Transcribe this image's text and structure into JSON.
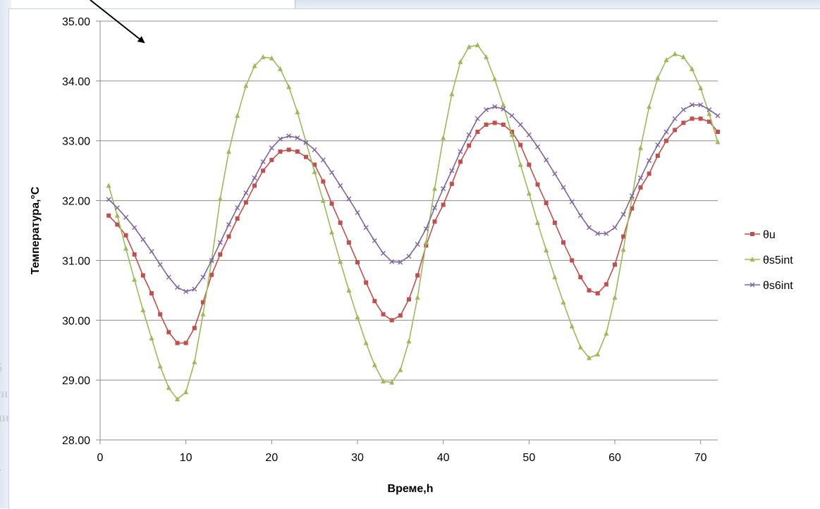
{
  "background": {
    "fragments": [
      "б",
      "ги",
      "ли",
      "."
    ]
  },
  "chart_data": {
    "type": "line",
    "title": "",
    "xlabel": "Време,h",
    "ylabel": "Температура,°C",
    "xlim": [
      0,
      72
    ],
    "ylim": [
      28,
      35
    ],
    "x_ticks": [
      "0",
      "10",
      "20",
      "30",
      "40",
      "50",
      "60",
      "70"
    ],
    "y_ticks": [
      "28.00",
      "29.00",
      "30.00",
      "31.00",
      "32.00",
      "33.00",
      "34.00",
      "35.00"
    ],
    "grid": "horizontal",
    "legend_position": "right",
    "series": [
      {
        "name": "θu",
        "color": "#c0504d",
        "marker": "square",
        "x": [
          1,
          2,
          3,
          4,
          5,
          6,
          7,
          8,
          9,
          10,
          11,
          12,
          13,
          14,
          15,
          16,
          17,
          18,
          19,
          20,
          21,
          22,
          23,
          24,
          25,
          26,
          27,
          28,
          29,
          30,
          31,
          32,
          33,
          34,
          35,
          36,
          37,
          38,
          39,
          40,
          41,
          42,
          43,
          44,
          45,
          46,
          47,
          48,
          49,
          50,
          51,
          52,
          53,
          54,
          55,
          56,
          57,
          58,
          59,
          60,
          61,
          62,
          63,
          64,
          65,
          66,
          67,
          68,
          69,
          70,
          71,
          72
        ],
        "values": [
          31.75,
          31.6,
          31.42,
          31.1,
          30.75,
          30.45,
          30.1,
          29.8,
          29.62,
          29.62,
          29.87,
          30.3,
          30.76,
          31.1,
          31.4,
          31.7,
          31.97,
          32.25,
          32.5,
          32.68,
          32.82,
          32.85,
          32.82,
          32.73,
          32.6,
          32.32,
          31.95,
          31.63,
          31.3,
          30.97,
          30.63,
          30.32,
          30.1,
          30.0,
          30.08,
          30.35,
          30.75,
          31.25,
          31.65,
          31.93,
          32.28,
          32.65,
          32.92,
          33.15,
          33.27,
          33.3,
          33.27,
          33.15,
          32.93,
          32.6,
          32.27,
          31.96,
          31.63,
          31.3,
          31.0,
          30.72,
          30.5,
          30.45,
          30.6,
          30.93,
          31.4,
          31.87,
          32.22,
          32.45,
          32.75,
          33.0,
          33.18,
          33.3,
          33.37,
          33.37,
          33.32,
          33.15
        ]
      },
      {
        "name": "θs5int",
        "color": "#9bbb59",
        "marker": "triangle",
        "x": [
          1,
          2,
          3,
          4,
          5,
          6,
          7,
          8,
          9,
          10,
          11,
          12,
          13,
          14,
          15,
          16,
          17,
          18,
          19,
          20,
          21,
          22,
          23,
          24,
          25,
          26,
          27,
          28,
          29,
          30,
          31,
          32,
          33,
          34,
          35,
          36,
          37,
          38,
          39,
          40,
          41,
          42,
          43,
          44,
          45,
          46,
          47,
          48,
          49,
          50,
          51,
          52,
          53,
          54,
          55,
          56,
          57,
          58,
          59,
          60,
          61,
          62,
          63,
          64,
          65,
          66,
          67,
          68,
          69,
          70,
          71,
          72
        ],
        "values": [
          32.25,
          31.75,
          31.2,
          30.68,
          30.17,
          29.7,
          29.23,
          28.87,
          28.68,
          28.8,
          29.3,
          30.1,
          31.0,
          32.03,
          32.82,
          33.42,
          33.92,
          34.25,
          34.4,
          34.38,
          34.2,
          33.9,
          33.48,
          32.98,
          32.48,
          32.0,
          31.47,
          30.98,
          30.5,
          30.05,
          29.62,
          29.25,
          28.98,
          28.96,
          29.17,
          29.65,
          30.38,
          31.3,
          32.2,
          33.05,
          33.78,
          34.32,
          34.57,
          34.6,
          34.4,
          34.03,
          33.6,
          33.1,
          32.6,
          32.12,
          31.63,
          31.17,
          30.72,
          30.3,
          29.9,
          29.55,
          29.37,
          29.43,
          29.78,
          30.38,
          31.18,
          32.05,
          32.88,
          33.57,
          34.05,
          34.35,
          34.45,
          34.4,
          34.2,
          33.88,
          33.45,
          32.98
        ]
      },
      {
        "name": "θs6int",
        "color": "#8064a2",
        "marker": "x",
        "x": [
          1,
          2,
          3,
          4,
          5,
          6,
          7,
          8,
          9,
          10,
          11,
          12,
          13,
          14,
          15,
          16,
          17,
          18,
          19,
          20,
          21,
          22,
          23,
          24,
          25,
          26,
          27,
          28,
          29,
          30,
          31,
          32,
          33,
          34,
          35,
          36,
          37,
          38,
          39,
          40,
          41,
          42,
          43,
          44,
          45,
          46,
          47,
          48,
          49,
          50,
          51,
          52,
          53,
          54,
          55,
          56,
          57,
          58,
          59,
          60,
          61,
          62,
          63,
          64,
          65,
          66,
          67,
          68,
          69,
          70,
          71,
          72
        ],
        "values": [
          32.02,
          31.88,
          31.72,
          31.55,
          31.35,
          31.15,
          30.93,
          30.72,
          30.55,
          30.48,
          30.52,
          30.72,
          31.0,
          31.3,
          31.6,
          31.88,
          32.13,
          32.38,
          32.65,
          32.88,
          33.03,
          33.08,
          33.05,
          32.97,
          32.85,
          32.68,
          32.47,
          32.25,
          32.03,
          31.8,
          31.55,
          31.33,
          31.12,
          30.98,
          30.97,
          31.07,
          31.27,
          31.53,
          31.88,
          32.2,
          32.5,
          32.82,
          33.1,
          33.37,
          33.52,
          33.57,
          33.53,
          33.42,
          33.27,
          33.1,
          32.9,
          32.68,
          32.45,
          32.22,
          31.98,
          31.75,
          31.55,
          31.45,
          31.45,
          31.55,
          31.77,
          32.08,
          32.38,
          32.67,
          32.93,
          33.15,
          33.37,
          33.52,
          33.6,
          33.6,
          33.52,
          33.42
        ]
      }
    ],
    "annotation": "arrow"
  }
}
